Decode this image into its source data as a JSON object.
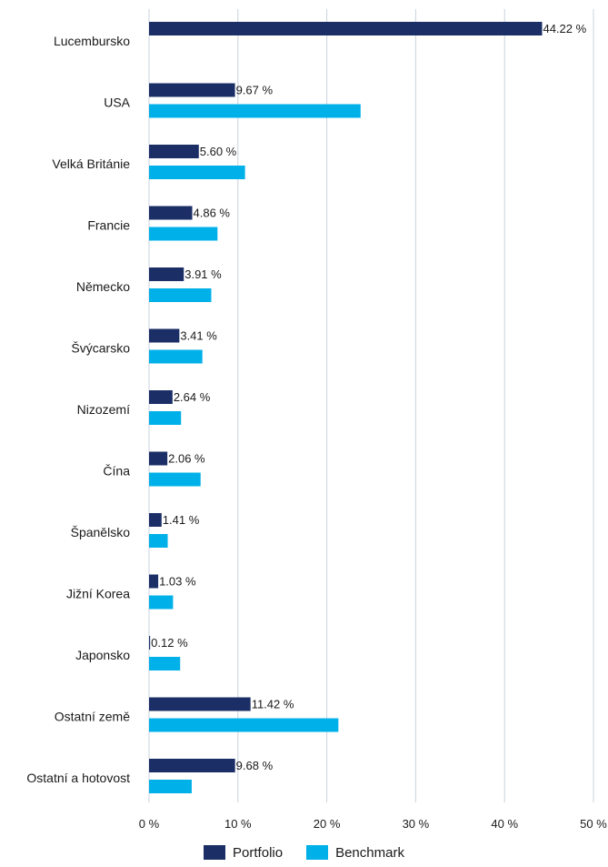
{
  "chart_data": {
    "type": "bar",
    "orientation": "horizontal",
    "categories": [
      "Lucembursko",
      "USA",
      "Velká Británie",
      "Francie",
      "Německo",
      "Švýcarsko",
      "Nizozemí",
      "Čína",
      "Španělsko",
      "Jižní Korea",
      "Japonsko",
      "Ostatní země",
      "Ostatní a hotovost"
    ],
    "series": [
      {
        "name": "Portfolio",
        "color": "#1b2f66",
        "values": [
          44.22,
          9.67,
          5.6,
          4.86,
          3.91,
          3.41,
          2.64,
          2.06,
          1.41,
          1.03,
          0.12,
          11.42,
          9.68
        ],
        "data_labels": [
          "44.22 %",
          "9.67 %",
          "5.60 %",
          "4.86 %",
          "3.91 %",
          "3.41 %",
          "2.64 %",
          "2.06 %",
          "1.41 %",
          "1.03 %",
          "0.12 %",
          "11.42 %",
          "9.68 %"
        ]
      },
      {
        "name": "Benchmark",
        "color": "#00b0e8",
        "values": [
          0,
          23.8,
          10.8,
          7.7,
          7.0,
          6.0,
          3.6,
          5.8,
          2.1,
          2.7,
          3.5,
          21.3,
          4.8
        ]
      }
    ],
    "xlim": [
      0,
      50
    ],
    "xticks": [
      0,
      10,
      20,
      30,
      40,
      50
    ],
    "xtick_labels": [
      "0 %",
      "10 %",
      "20 %",
      "30 %",
      "40 %",
      "50 %"
    ],
    "grid": "vertical",
    "legend_position": "bottom-center",
    "title": "",
    "xlabel": "",
    "ylabel": ""
  }
}
